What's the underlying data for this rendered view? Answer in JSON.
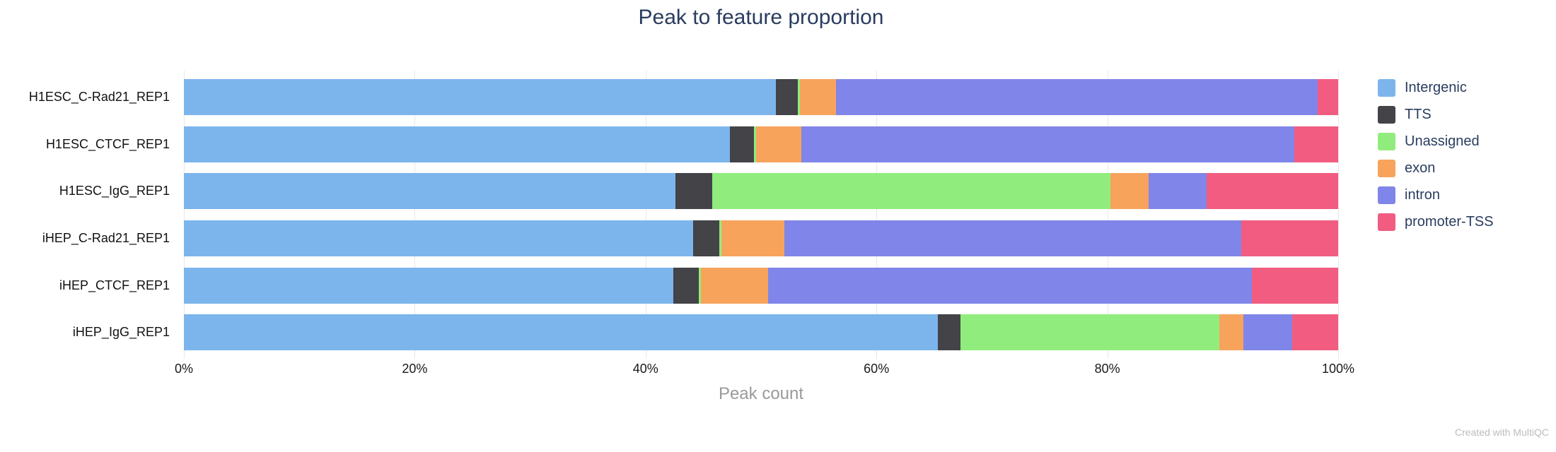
{
  "title": "Peak to feature proportion",
  "xaxis": {
    "label": "Peak count",
    "ticks": [
      "0%",
      "20%",
      "40%",
      "60%",
      "80%",
      "100%"
    ],
    "tick_positions": [
      0,
      20,
      40,
      60,
      80,
      100
    ]
  },
  "footer": "Created with MultiQC",
  "colors": {
    "title_text": "#2a3c5f",
    "legend_text": "#2a3c5f",
    "tick_text": "#1a1a1a",
    "axis_label_text": "#9a9a9a",
    "footer_text": "#bcbcbc",
    "gridline": "#e8e8e8",
    "background": "#ffffff"
  },
  "chart_data": {
    "type": "bar",
    "orientation": "horizontal",
    "stacked": true,
    "unit": "percent",
    "title": "Peak to feature proportion",
    "xlabel": "Peak count",
    "ylabel": "",
    "xlim": [
      0,
      100
    ],
    "grid": true,
    "legend_position": "right",
    "categories": [
      "H1ESC_C-Rad21_REP1",
      "H1ESC_CTCF_REP1",
      "H1ESC_IgG_REP1",
      "iHEP_C-Rad21_REP1",
      "iHEP_CTCF_REP1",
      "iHEP_IgG_REP1"
    ],
    "series": [
      {
        "name": "Intergenic",
        "color": "#7cb5ec",
        "values": [
          51.3,
          47.3,
          42.6,
          44.1,
          42.4,
          65.3
        ]
      },
      {
        "name": "TTS",
        "color": "#434348",
        "values": [
          1.9,
          2.1,
          3.2,
          2.3,
          2.2,
          2.0
        ]
      },
      {
        "name": "Unassigned",
        "color": "#90ed7d",
        "values": [
          0.2,
          0.2,
          34.5,
          0.2,
          0.2,
          22.4
        ]
      },
      {
        "name": "exon",
        "color": "#f7a35c",
        "values": [
          3.1,
          3.9,
          3.3,
          5.4,
          5.8,
          2.1
        ]
      },
      {
        "name": "intron",
        "color": "#8085e9",
        "values": [
          41.7,
          42.7,
          5.0,
          39.6,
          41.9,
          4.2
        ]
      },
      {
        "name": "promoter-TSS",
        "color": "#f15c80",
        "values": [
          1.8,
          3.8,
          11.4,
          8.4,
          7.5,
          4.0
        ]
      }
    ]
  }
}
